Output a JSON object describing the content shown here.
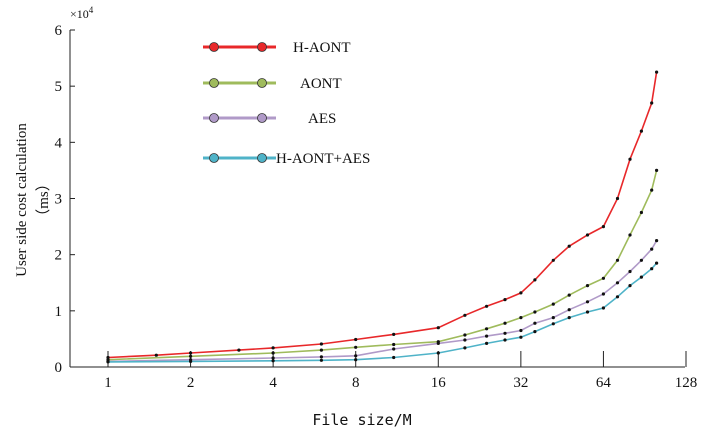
{
  "chart_data": {
    "type": "line",
    "title": "",
    "xlabel": "File size/M",
    "ylabel": "User side cost calculation",
    "ylabel_unit": "（ms）",
    "x_scale": "log2",
    "xlim": [
      1,
      128
    ],
    "ylim": [
      0,
      60000
    ],
    "y_multiplier_label": "×10",
    "y_multiplier_exponent": "4",
    "x_ticks": [
      1,
      2,
      4,
      8,
      16,
      32,
      64,
      128
    ],
    "x_tick_labels": [
      "1",
      "2",
      "4",
      "8",
      "16",
      "32",
      "64",
      "128"
    ],
    "y_ticks": [
      0,
      10000,
      20000,
      30000,
      40000,
      50000,
      60000
    ],
    "y_tick_labels": [
      "0",
      "1",
      "2",
      "3",
      "4",
      "5",
      "6"
    ],
    "grid": false,
    "legend_position": "top-left",
    "series": [
      {
        "name": "H-AONT",
        "color": "#e8282a",
        "x": [
          1,
          1.5,
          2,
          3,
          4,
          6,
          8,
          11,
          16,
          20,
          24,
          28,
          32,
          36,
          42,
          48,
          56,
          64,
          72,
          80,
          88,
          96,
          100
        ],
        "y": [
          1700,
          2100,
          2500,
          3000,
          3400,
          4100,
          4900,
          5800,
          7000,
          9200,
          10800,
          12000,
          13200,
          15500,
          19000,
          21500,
          23500,
          25000,
          30000,
          37000,
          42000,
          47000,
          52500
        ]
      },
      {
        "name": "AONT",
        "color": "#9fbb5c",
        "x": [
          1,
          2,
          4,
          6,
          8,
          11,
          16,
          20,
          24,
          28,
          32,
          36,
          42,
          48,
          56,
          64,
          72,
          80,
          88,
          96,
          100
        ],
        "y": [
          1300,
          1900,
          2500,
          3000,
          3500,
          4000,
          4500,
          5700,
          6800,
          7800,
          8800,
          9800,
          11200,
          12800,
          14500,
          15800,
          19000,
          23500,
          27500,
          31500,
          35000
        ]
      },
      {
        "name": "AES",
        "color": "#b09ac8",
        "x": [
          1,
          2,
          4,
          6,
          8,
          11,
          16,
          20,
          24,
          28,
          32,
          36,
          42,
          48,
          56,
          64,
          72,
          80,
          88,
          96,
          100
        ],
        "y": [
          1000,
          1300,
          1600,
          1800,
          2000,
          3200,
          4200,
          4800,
          5500,
          6000,
          6500,
          7800,
          8800,
          10200,
          11600,
          13000,
          15000,
          17000,
          19000,
          21000,
          22500
        ]
      },
      {
        "name": "H-AONT+AES",
        "color": "#4fb3c8",
        "x": [
          1,
          2,
          4,
          6,
          8,
          11,
          16,
          20,
          24,
          28,
          32,
          36,
          42,
          48,
          56,
          64,
          72,
          80,
          88,
          96,
          100
        ],
        "y": [
          900,
          1000,
          1100,
          1200,
          1300,
          1700,
          2500,
          3400,
          4200,
          4800,
          5300,
          6300,
          7700,
          8800,
          9800,
          10500,
          12500,
          14500,
          16000,
          17500,
          18500
        ]
      }
    ]
  }
}
